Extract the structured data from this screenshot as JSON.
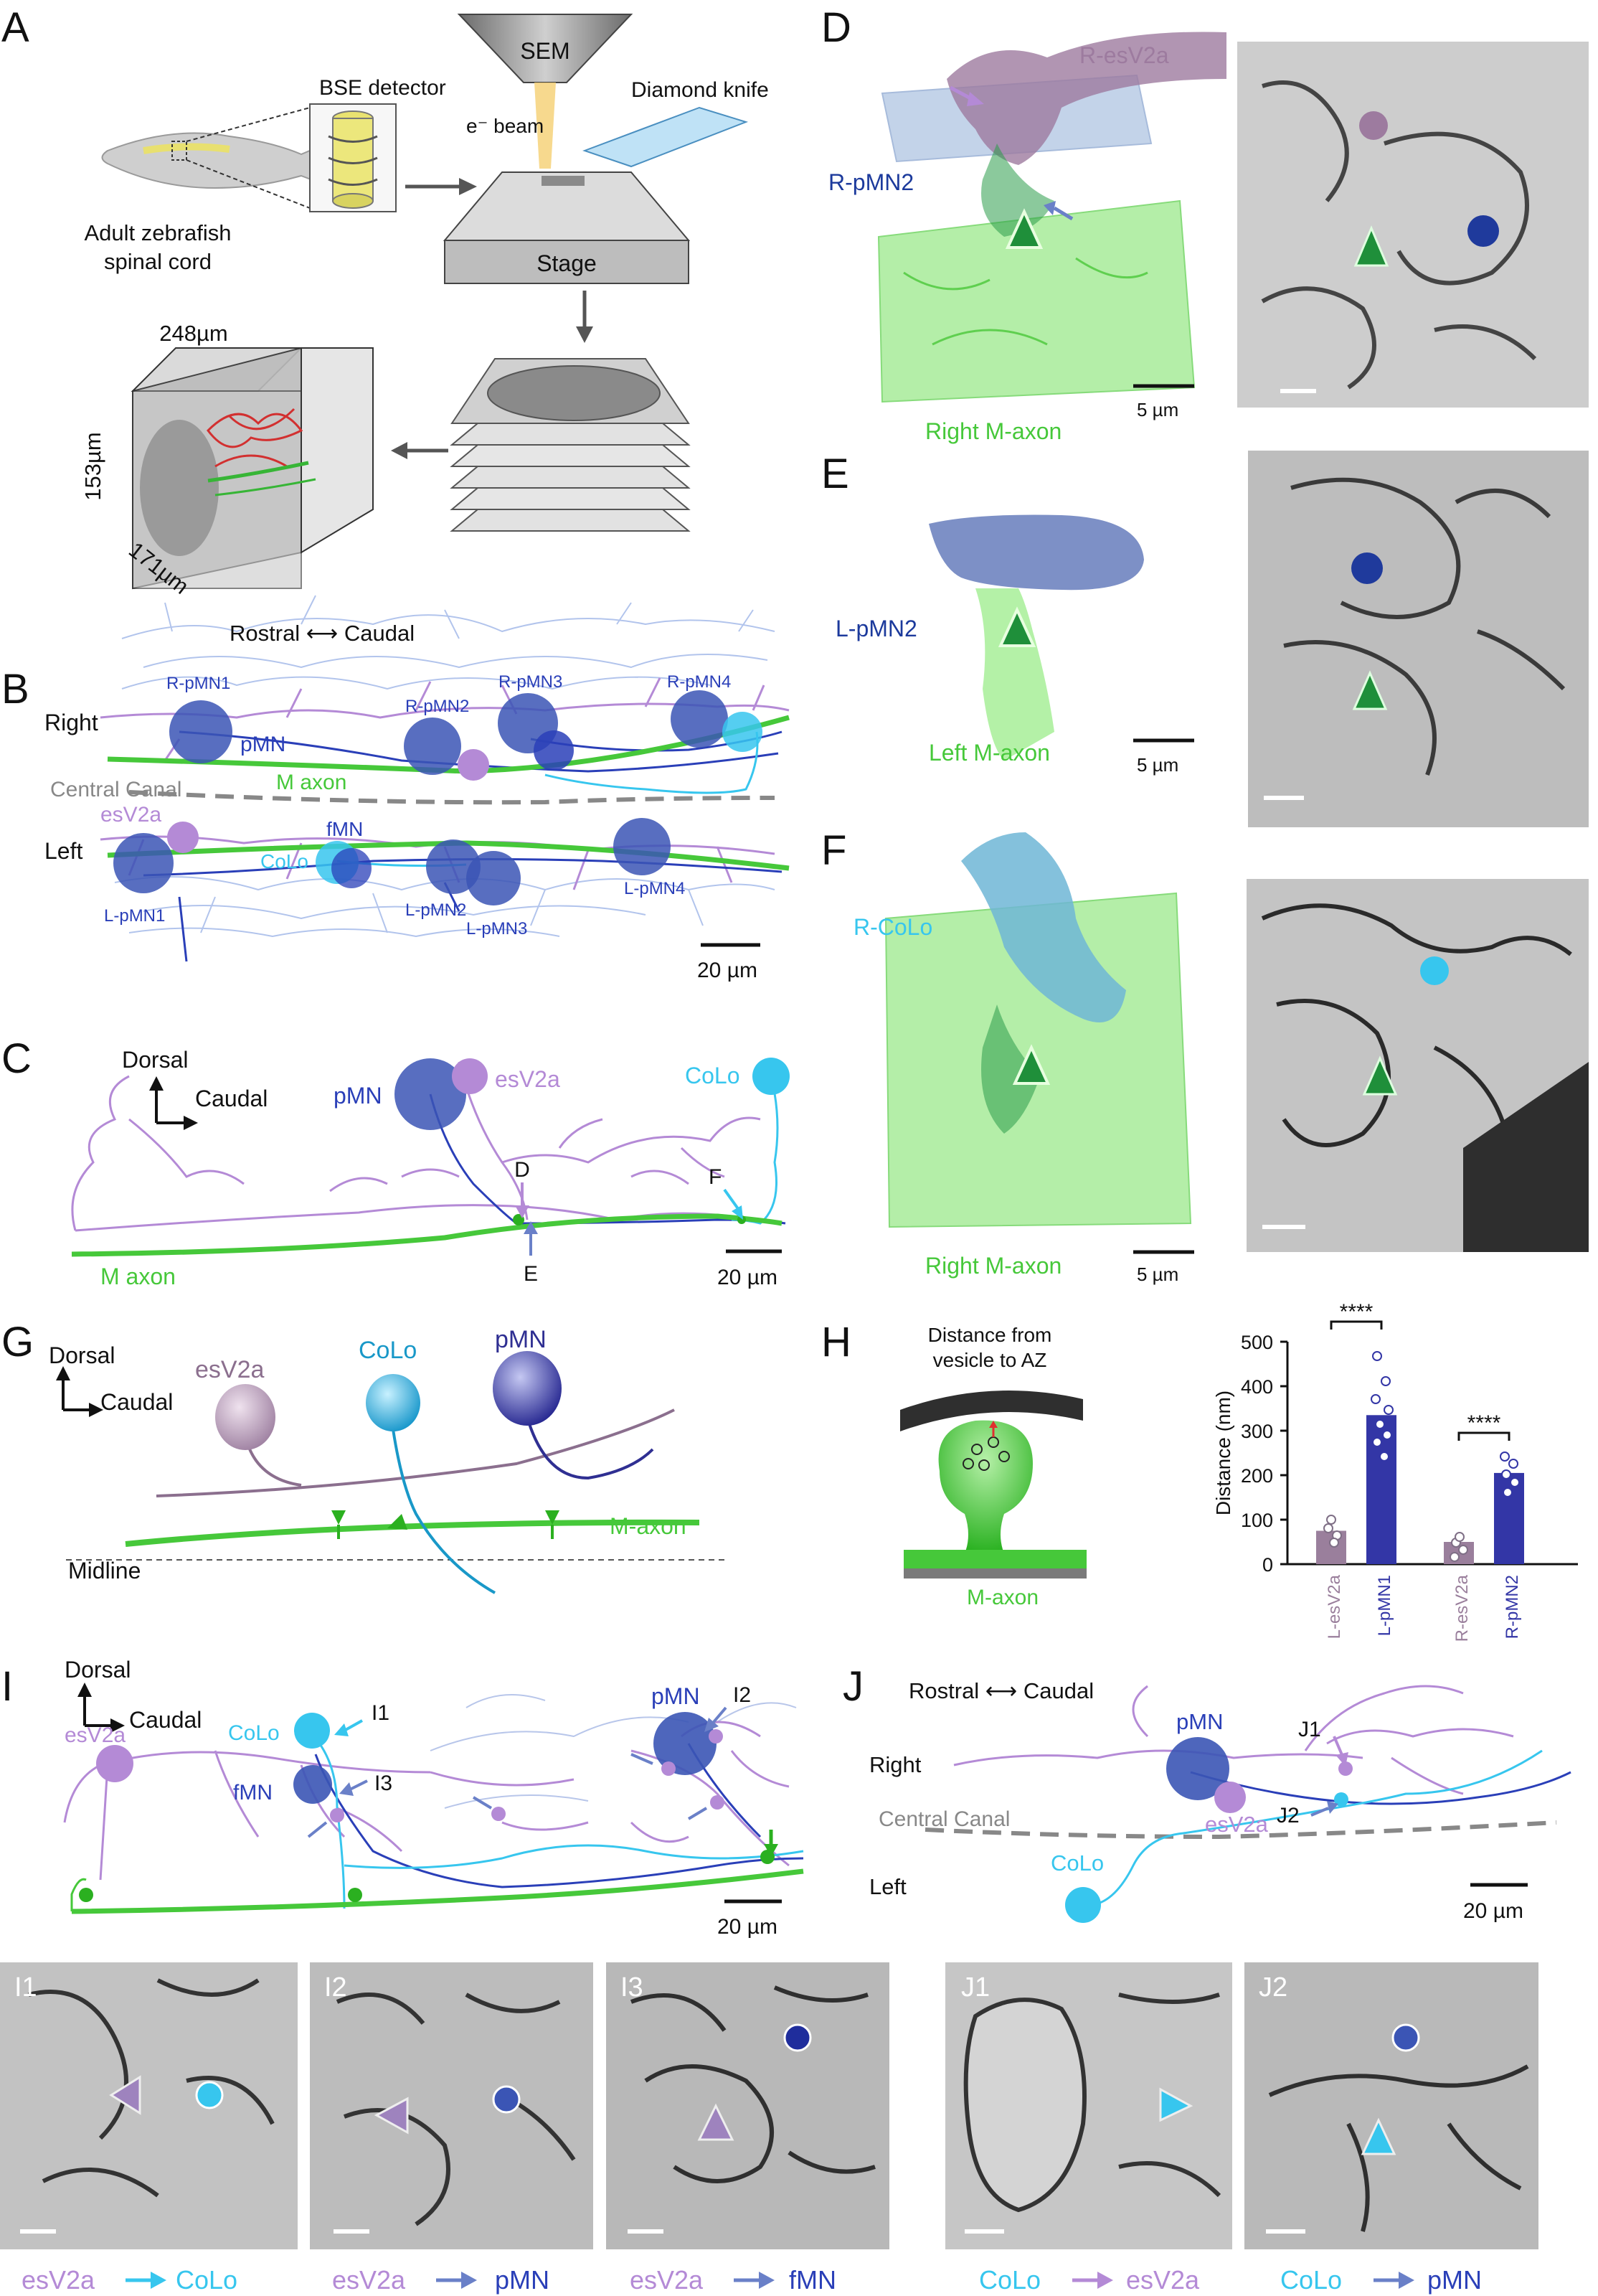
{
  "panel_letters": [
    "A",
    "B",
    "C",
    "D",
    "E",
    "F",
    "G",
    "H",
    "I",
    "J"
  ],
  "colors": {
    "esV2a": "#b48ad6",
    "pMN": "#3b4fb0",
    "CoLo": "#37c6ee",
    "M_axon": "#46c83a",
    "gray": "#7a7a7a"
  },
  "A": {
    "sem": "SEM",
    "bse": "BSE detector",
    "knife": "Diamond knife",
    "beam": "e⁻ beam",
    "fish": "Adult zebrafish",
    "fish2": "spinal cord",
    "stage": "Stage",
    "dim_x": "248µm",
    "dim_y": "153µm",
    "dim_z": "171µm"
  },
  "B": {
    "orientation": "Rostral ⟷ Caudal",
    "right": "Right",
    "left": "Left",
    "canal": "Central Canal",
    "maxon": "M axon",
    "pmn": "pMN",
    "esv2a": "esV2a",
    "fmn": "fMN",
    "colo": "CoLo",
    "r1": "R-pMN1",
    "r2": "R-pMN2",
    "r3": "R-pMN3",
    "r4": "R-pMN4",
    "l1": "L-pMN1",
    "l2": "L-pMN2",
    "l3": "L-pMN3",
    "l4": "L-pMN4",
    "scale": "20 µm"
  },
  "C": {
    "dorsal": "Dorsal",
    "caudal": "Caudal",
    "pmn": "pMN",
    "esv2a": "esV2a",
    "colo": "CoLo",
    "d": "D",
    "e": "E",
    "f": "F",
    "maxon": "M axon",
    "scale": "20 µm"
  },
  "D": {
    "resv2a": "R-esV2a",
    "rpmn2": "R-pMN2",
    "raxon": "Right M-axon",
    "scale": "5 µm"
  },
  "E": {
    "lpmn2": "L-pMN2",
    "laxon": "Left M-axon",
    "scale": "5 µm"
  },
  "F": {
    "rcolo": "R-CoLo",
    "raxon": "Right M-axon",
    "scale": "5 µm"
  },
  "G": {
    "dorsal": "Dorsal",
    "caudal": "Caudal",
    "esv2a": "esV2a",
    "colo": "CoLo",
    "pmn": "pMN",
    "maxon": "M-axon",
    "midline": "Midline"
  },
  "H": {
    "title1": "Distance from",
    "title2": "vesicle to AZ",
    "maxon": "M-axon",
    "sig": "****",
    "chart_data": {
      "type": "bar",
      "categories": [
        "L-esV2a",
        "L-pMN1",
        "R-esV2a",
        "R-pMN2"
      ],
      "values": [
        75,
        335,
        50,
        205
      ],
      "ylabel": "Distance (nm)",
      "ylim": [
        0,
        500
      ],
      "yticks": [
        "0",
        "100",
        "200",
        "300",
        "400",
        "500"
      ],
      "significance": "****",
      "colors": [
        "#9a7f9c",
        "#3336a6",
        "#9a7f9c",
        "#3336a6"
      ]
    }
  },
  "I": {
    "dorsal": "Dorsal",
    "caudal": "Caudal",
    "esv2a": "esV2a",
    "colo": "CoLo",
    "fmn": "fMN",
    "pmn": "pMN",
    "i1": "I1",
    "i2": "I2",
    "i3": "I3",
    "scale": "20 µm"
  },
  "J": {
    "orientation": "Rostral ⟷ Caudal",
    "right": "Right",
    "left": "Left",
    "canal": "Central Canal",
    "pmn": "pMN",
    "esv2a": "esV2a",
    "colo": "CoLo",
    "j1": "J1",
    "j2": "J2",
    "scale": "20 µm"
  },
  "em_labels": [
    "I1",
    "I2",
    "I3",
    "J1",
    "J2"
  ],
  "bottom": {
    "a1": "esV2a",
    "b1": "CoLo",
    "a2": "esV2a",
    "b2": "pMN",
    "a3": "esV2a",
    "b3": "fMN",
    "a4": "CoLo",
    "b4": "esV2a",
    "a5": "CoLo",
    "b5": "pMN"
  }
}
